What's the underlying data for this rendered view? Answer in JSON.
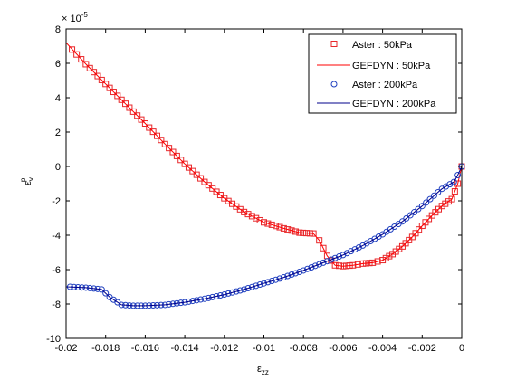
{
  "chart_data": {
    "type": "line",
    "xlabel": "ε",
    "xlabel_sub": "zz",
    "ylabel": "ε",
    "ylabel_sub": "v",
    "ylabel_sup": "p",
    "y_multiplier": "× 10",
    "y_multiplier_exp": "-5",
    "xlim": [
      -0.02,
      0
    ],
    "ylim": [
      -10,
      8
    ],
    "xticks": [
      "-0.02",
      "-0.018",
      "-0.016",
      "-0.014",
      "-0.012",
      "-0.01",
      "-0.008",
      "-0.006",
      "-0.004",
      "-0.002",
      "0"
    ],
    "yticks": [
      "-10",
      "-8",
      "-6",
      "-4",
      "-2",
      "0",
      "2",
      "4",
      "6",
      "8"
    ],
    "grid": false,
    "legend_position": "top-right",
    "series": [
      {
        "name": "Aster : 50kPa",
        "style": "markers",
        "marker": "square",
        "color": "#e8272a",
        "x": [
          -0.0197,
          -0.019,
          -0.018,
          -0.017,
          -0.016,
          -0.015,
          -0.014,
          -0.013,
          -0.012,
          -0.011,
          -0.01,
          -0.009,
          -0.0082,
          -0.0075,
          -0.0072,
          -0.0068,
          -0.0064,
          -0.006,
          -0.0055,
          -0.005,
          -0.0045,
          -0.004,
          -0.0035,
          -0.003,
          -0.0025,
          -0.002,
          -0.0015,
          -0.001,
          -0.0005,
          -0.0002,
          0.0
        ],
        "y": [
          6.8,
          5.95,
          4.8,
          3.65,
          2.5,
          1.3,
          0.15,
          -0.9,
          -1.85,
          -2.65,
          -3.25,
          -3.6,
          -3.85,
          -3.9,
          -4.3,
          -5.2,
          -5.75,
          -5.8,
          -5.75,
          -5.65,
          -5.6,
          -5.45,
          -5.1,
          -4.65,
          -4.1,
          -3.45,
          -2.85,
          -2.3,
          -1.9,
          -1.0,
          0.0
        ]
      },
      {
        "name": "GEFDYN : 50kPa",
        "style": "line",
        "color": "#ff0000",
        "x": [
          -0.02,
          -0.019,
          -0.018,
          -0.017,
          -0.016,
          -0.015,
          -0.014,
          -0.013,
          -0.012,
          -0.011,
          -0.01,
          -0.009,
          -0.0082,
          -0.0075,
          -0.0072,
          -0.0068,
          -0.0064,
          -0.006,
          -0.0055,
          -0.005,
          -0.0045,
          -0.004,
          -0.0035,
          -0.003,
          -0.0025,
          -0.002,
          -0.0015,
          -0.001,
          -0.0005,
          -0.0002,
          0.0
        ],
        "y": [
          7.2,
          5.95,
          4.8,
          3.65,
          2.5,
          1.3,
          0.15,
          -0.9,
          -1.85,
          -2.65,
          -3.25,
          -3.6,
          -3.85,
          -3.9,
          -4.3,
          -5.2,
          -5.75,
          -5.8,
          -5.75,
          -5.65,
          -5.6,
          -5.45,
          -5.1,
          -4.65,
          -4.1,
          -3.45,
          -2.85,
          -2.3,
          -1.9,
          -1.0,
          0.0
        ]
      },
      {
        "name": "Aster : 200kPa",
        "style": "markers",
        "marker": "circle",
        "color": "#1f3fbf",
        "x": [
          -0.0198,
          -0.019,
          -0.0182,
          -0.0178,
          -0.0172,
          -0.0166,
          -0.016,
          -0.015,
          -0.014,
          -0.013,
          -0.012,
          -0.011,
          -0.01,
          -0.009,
          -0.008,
          -0.007,
          -0.006,
          -0.005,
          -0.004,
          -0.003,
          -0.002,
          -0.001,
          -0.0004,
          -0.0002,
          0.0
        ],
        "y": [
          -7.0,
          -7.05,
          -7.15,
          -7.6,
          -8.05,
          -8.1,
          -8.1,
          -8.05,
          -7.9,
          -7.7,
          -7.45,
          -7.15,
          -6.8,
          -6.45,
          -6.05,
          -5.6,
          -5.15,
          -4.6,
          -3.95,
          -3.2,
          -2.3,
          -1.3,
          -0.9,
          -0.5,
          0.0
        ]
      },
      {
        "name": "GEFDYN : 200kPa",
        "style": "line",
        "color": "#00008b",
        "x": [
          -0.02,
          -0.019,
          -0.0182,
          -0.0178,
          -0.0172,
          -0.0166,
          -0.016,
          -0.015,
          -0.014,
          -0.013,
          -0.012,
          -0.011,
          -0.01,
          -0.009,
          -0.008,
          -0.007,
          -0.006,
          -0.005,
          -0.004,
          -0.003,
          -0.002,
          -0.001,
          -0.0004,
          -0.0002,
          0.0
        ],
        "y": [
          -7.0,
          -7.05,
          -7.15,
          -7.6,
          -8.05,
          -8.1,
          -8.1,
          -8.05,
          -7.9,
          -7.7,
          -7.45,
          -7.15,
          -6.8,
          -6.45,
          -6.05,
          -5.6,
          -5.15,
          -4.6,
          -3.95,
          -3.2,
          -2.3,
          -1.3,
          -0.9,
          -0.5,
          0.0
        ]
      }
    ]
  }
}
